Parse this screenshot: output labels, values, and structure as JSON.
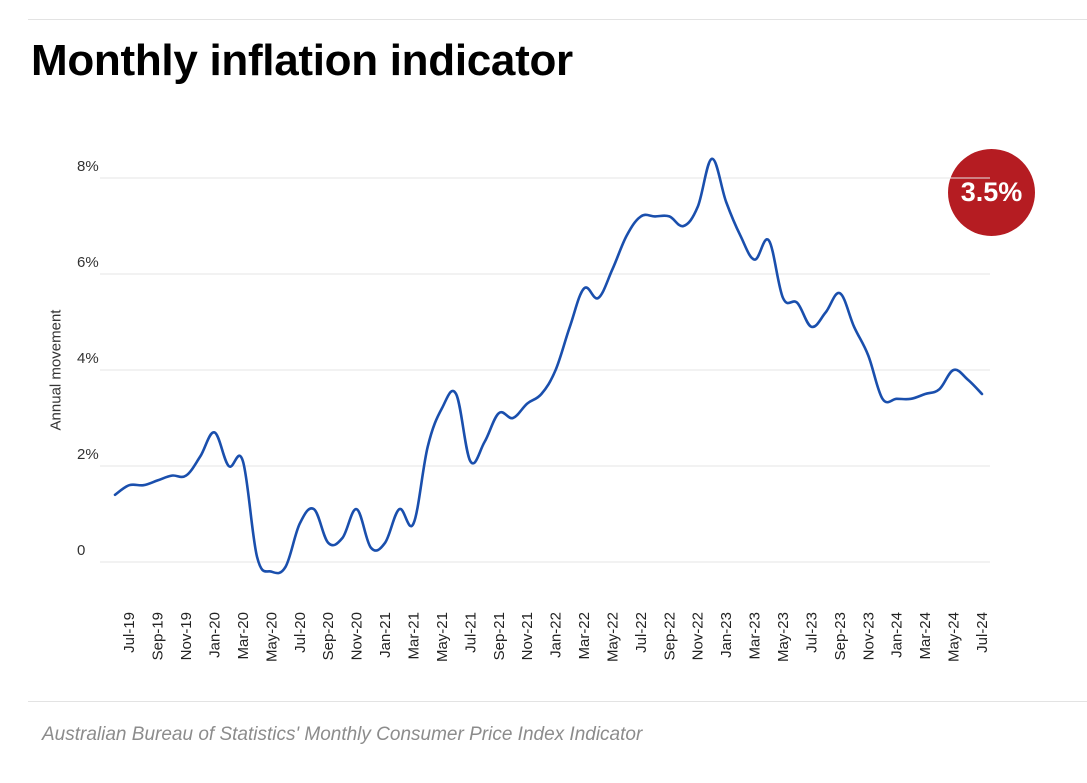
{
  "title": "Monthly inflation indicator",
  "source": "Australian Bureau of Statistics' Monthly Consumer Price Index Indicator",
  "badge": {
    "value": "3.5%",
    "color": "#b51c22"
  },
  "chart_data": {
    "type": "line",
    "title": "Monthly inflation indicator",
    "ylabel": "Annual movement",
    "xlabel": "",
    "ylim": [
      -0.3,
      8.4
    ],
    "yticks": [
      {
        "value": 0,
        "label": "0"
      },
      {
        "value": 2,
        "label": "2%"
      },
      {
        "value": 4,
        "label": "4%"
      },
      {
        "value": 6,
        "label": "6%"
      },
      {
        "value": 8,
        "label": "8%"
      }
    ],
    "grid": true,
    "x": [
      "Jun-19",
      "Jul-19",
      "Aug-19",
      "Sep-19",
      "Oct-19",
      "Nov-19",
      "Dec-19",
      "Jan-20",
      "Feb-20",
      "Mar-20",
      "Apr-20",
      "May-20",
      "Jun-20",
      "Jul-20",
      "Aug-20",
      "Sep-20",
      "Oct-20",
      "Nov-20",
      "Dec-20",
      "Jan-21",
      "Feb-21",
      "Mar-21",
      "Apr-21",
      "May-21",
      "Jun-21",
      "Jul-21",
      "Aug-21",
      "Sep-21",
      "Oct-21",
      "Nov-21",
      "Dec-21",
      "Jan-22",
      "Feb-22",
      "Mar-22",
      "Apr-22",
      "May-22",
      "Jun-22",
      "Jul-22",
      "Aug-22",
      "Sep-22",
      "Oct-22",
      "Nov-22",
      "Dec-22",
      "Jan-23",
      "Feb-23",
      "Mar-23",
      "Apr-23",
      "May-23",
      "Jun-23",
      "Jul-23",
      "Aug-23",
      "Sep-23",
      "Oct-23",
      "Nov-23",
      "Dec-23",
      "Jan-24",
      "Feb-24",
      "Mar-24",
      "Apr-24",
      "May-24",
      "Jun-24",
      "Jul-24"
    ],
    "xtick_labels": [
      "Jul-19",
      "Sep-19",
      "Nov-19",
      "Jan-20",
      "Mar-20",
      "May-20",
      "Jul-20",
      "Sep-20",
      "Nov-20",
      "Jan-21",
      "Mar-21",
      "May-21",
      "Jul-21",
      "Sep-21",
      "Nov-21",
      "Jan-22",
      "Mar-22",
      "May-22",
      "Jul-22",
      "Sep-22",
      "Nov-22",
      "Jan-23",
      "Mar-23",
      "May-23",
      "Jul-23",
      "Sep-23",
      "Nov-23",
      "Jan-24",
      "Mar-24",
      "May-24",
      "Jul-24"
    ],
    "series": [
      {
        "color": "#1a4fad",
        "values": [
          1.4,
          1.6,
          1.6,
          1.7,
          1.8,
          1.8,
          2.2,
          2.7,
          2.0,
          2.1,
          0.1,
          -0.2,
          -0.1,
          0.8,
          1.1,
          0.4,
          0.5,
          1.1,
          0.3,
          0.4,
          1.1,
          0.8,
          2.4,
          3.2,
          3.5,
          2.1,
          2.5,
          3.1,
          3.0,
          3.3,
          3.5,
          4.0,
          4.9,
          5.7,
          5.5,
          6.1,
          6.8,
          7.2,
          7.2,
          7.2,
          7.0,
          7.4,
          8.4,
          7.5,
          6.8,
          6.3,
          6.7,
          5.5,
          5.4,
          4.9,
          5.2,
          5.6,
          4.9,
          4.3,
          3.4,
          3.4,
          3.4,
          3.5,
          3.6,
          4.0,
          3.8,
          3.5
        ]
      }
    ]
  }
}
